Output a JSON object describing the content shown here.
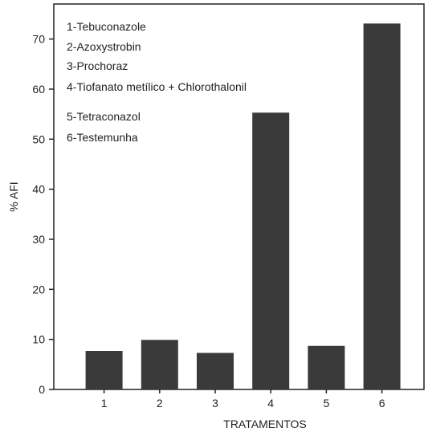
{
  "chart_data": {
    "type": "bar",
    "categories": [
      "1",
      "2",
      "3",
      "4",
      "5",
      "6"
    ],
    "values": [
      7.7,
      9.9,
      7.3,
      55.3,
      8.7,
      73.1
    ],
    "xlabel": "TRATAMENTOS",
    "ylabel": "% AFI",
    "ylim": [
      0,
      77
    ],
    "yticks": [
      0,
      10,
      20,
      30,
      40,
      50,
      60,
      70
    ],
    "grid": false,
    "legend_position": "top-left",
    "legend": [
      "1-Tebuconazole",
      "2-Azoxystrobin",
      "3-Prochoraz",
      "4-Tiofanato metílico + Chlorothalonil",
      "5-Tetraconazol",
      "6-Testemunha"
    ],
    "bar_color": "#3a3a3a"
  }
}
